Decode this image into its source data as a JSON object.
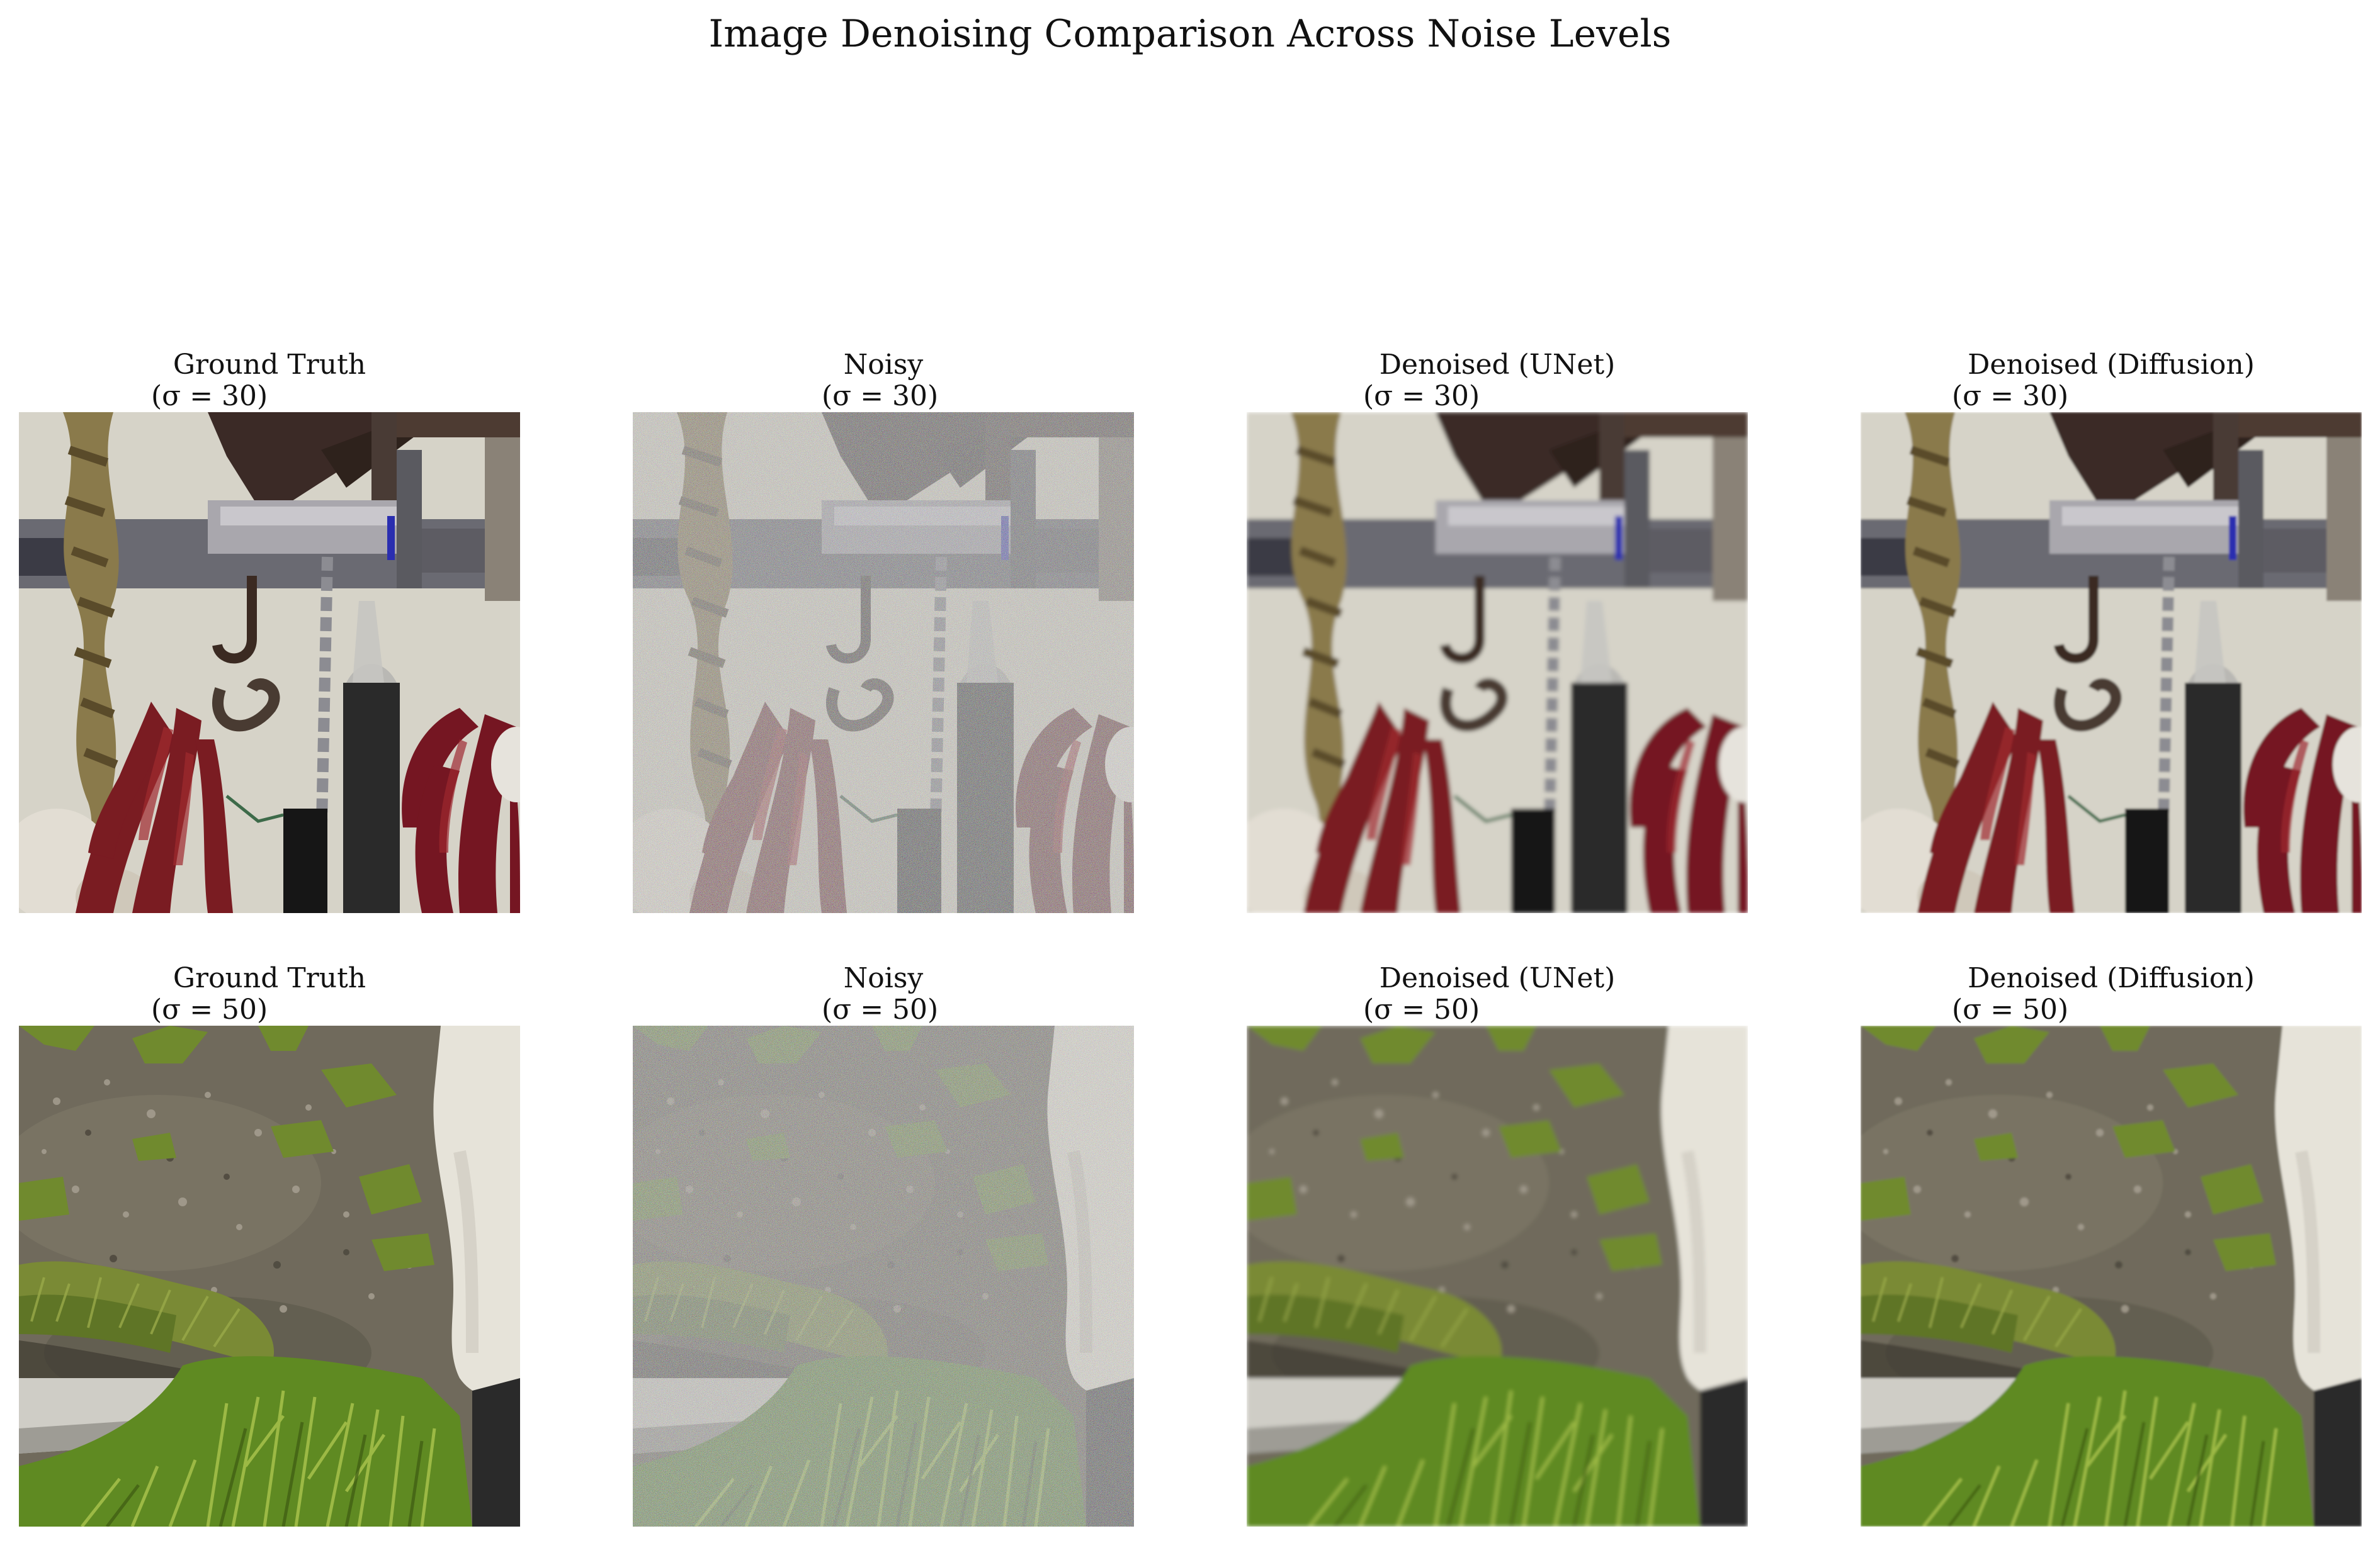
{
  "figure": {
    "title": "Image Denoising Comparison Across Noise Levels"
  },
  "rows": [
    {
      "sigma_text": "(σ = 30)",
      "sigma": 30,
      "scene": "hanging dried red chili peppers, braided garlic, metal hooks and chains on a bar",
      "panels": [
        {
          "title": "Ground Truth",
          "variant": "clean"
        },
        {
          "title": "Noisy",
          "variant": "noisy"
        },
        {
          "title": "Denoised (UNet)",
          "variant": "unet"
        },
        {
          "title": "Denoised (Diffusion)",
          "variant": "diffusion"
        }
      ]
    },
    {
      "sigma_text": "(σ = 50)",
      "sigma": 50,
      "scene": "gravel ground with grass tufts, curb edge and white animal leg",
      "panels": [
        {
          "title": "Ground Truth",
          "variant": "clean"
        },
        {
          "title": "Noisy",
          "variant": "noisy"
        },
        {
          "title": "Denoised (UNet)",
          "variant": "unet"
        },
        {
          "title": "Denoised (Diffusion)",
          "variant": "diffusion"
        }
      ]
    }
  ],
  "colors": {
    "background": "#ffffff",
    "wall": "#d6d3c8",
    "chili": "#7a1a22",
    "gravel": "#6f6a5c",
    "grass": "#6f8a2e",
    "white_leg": "#e6e3d9"
  }
}
